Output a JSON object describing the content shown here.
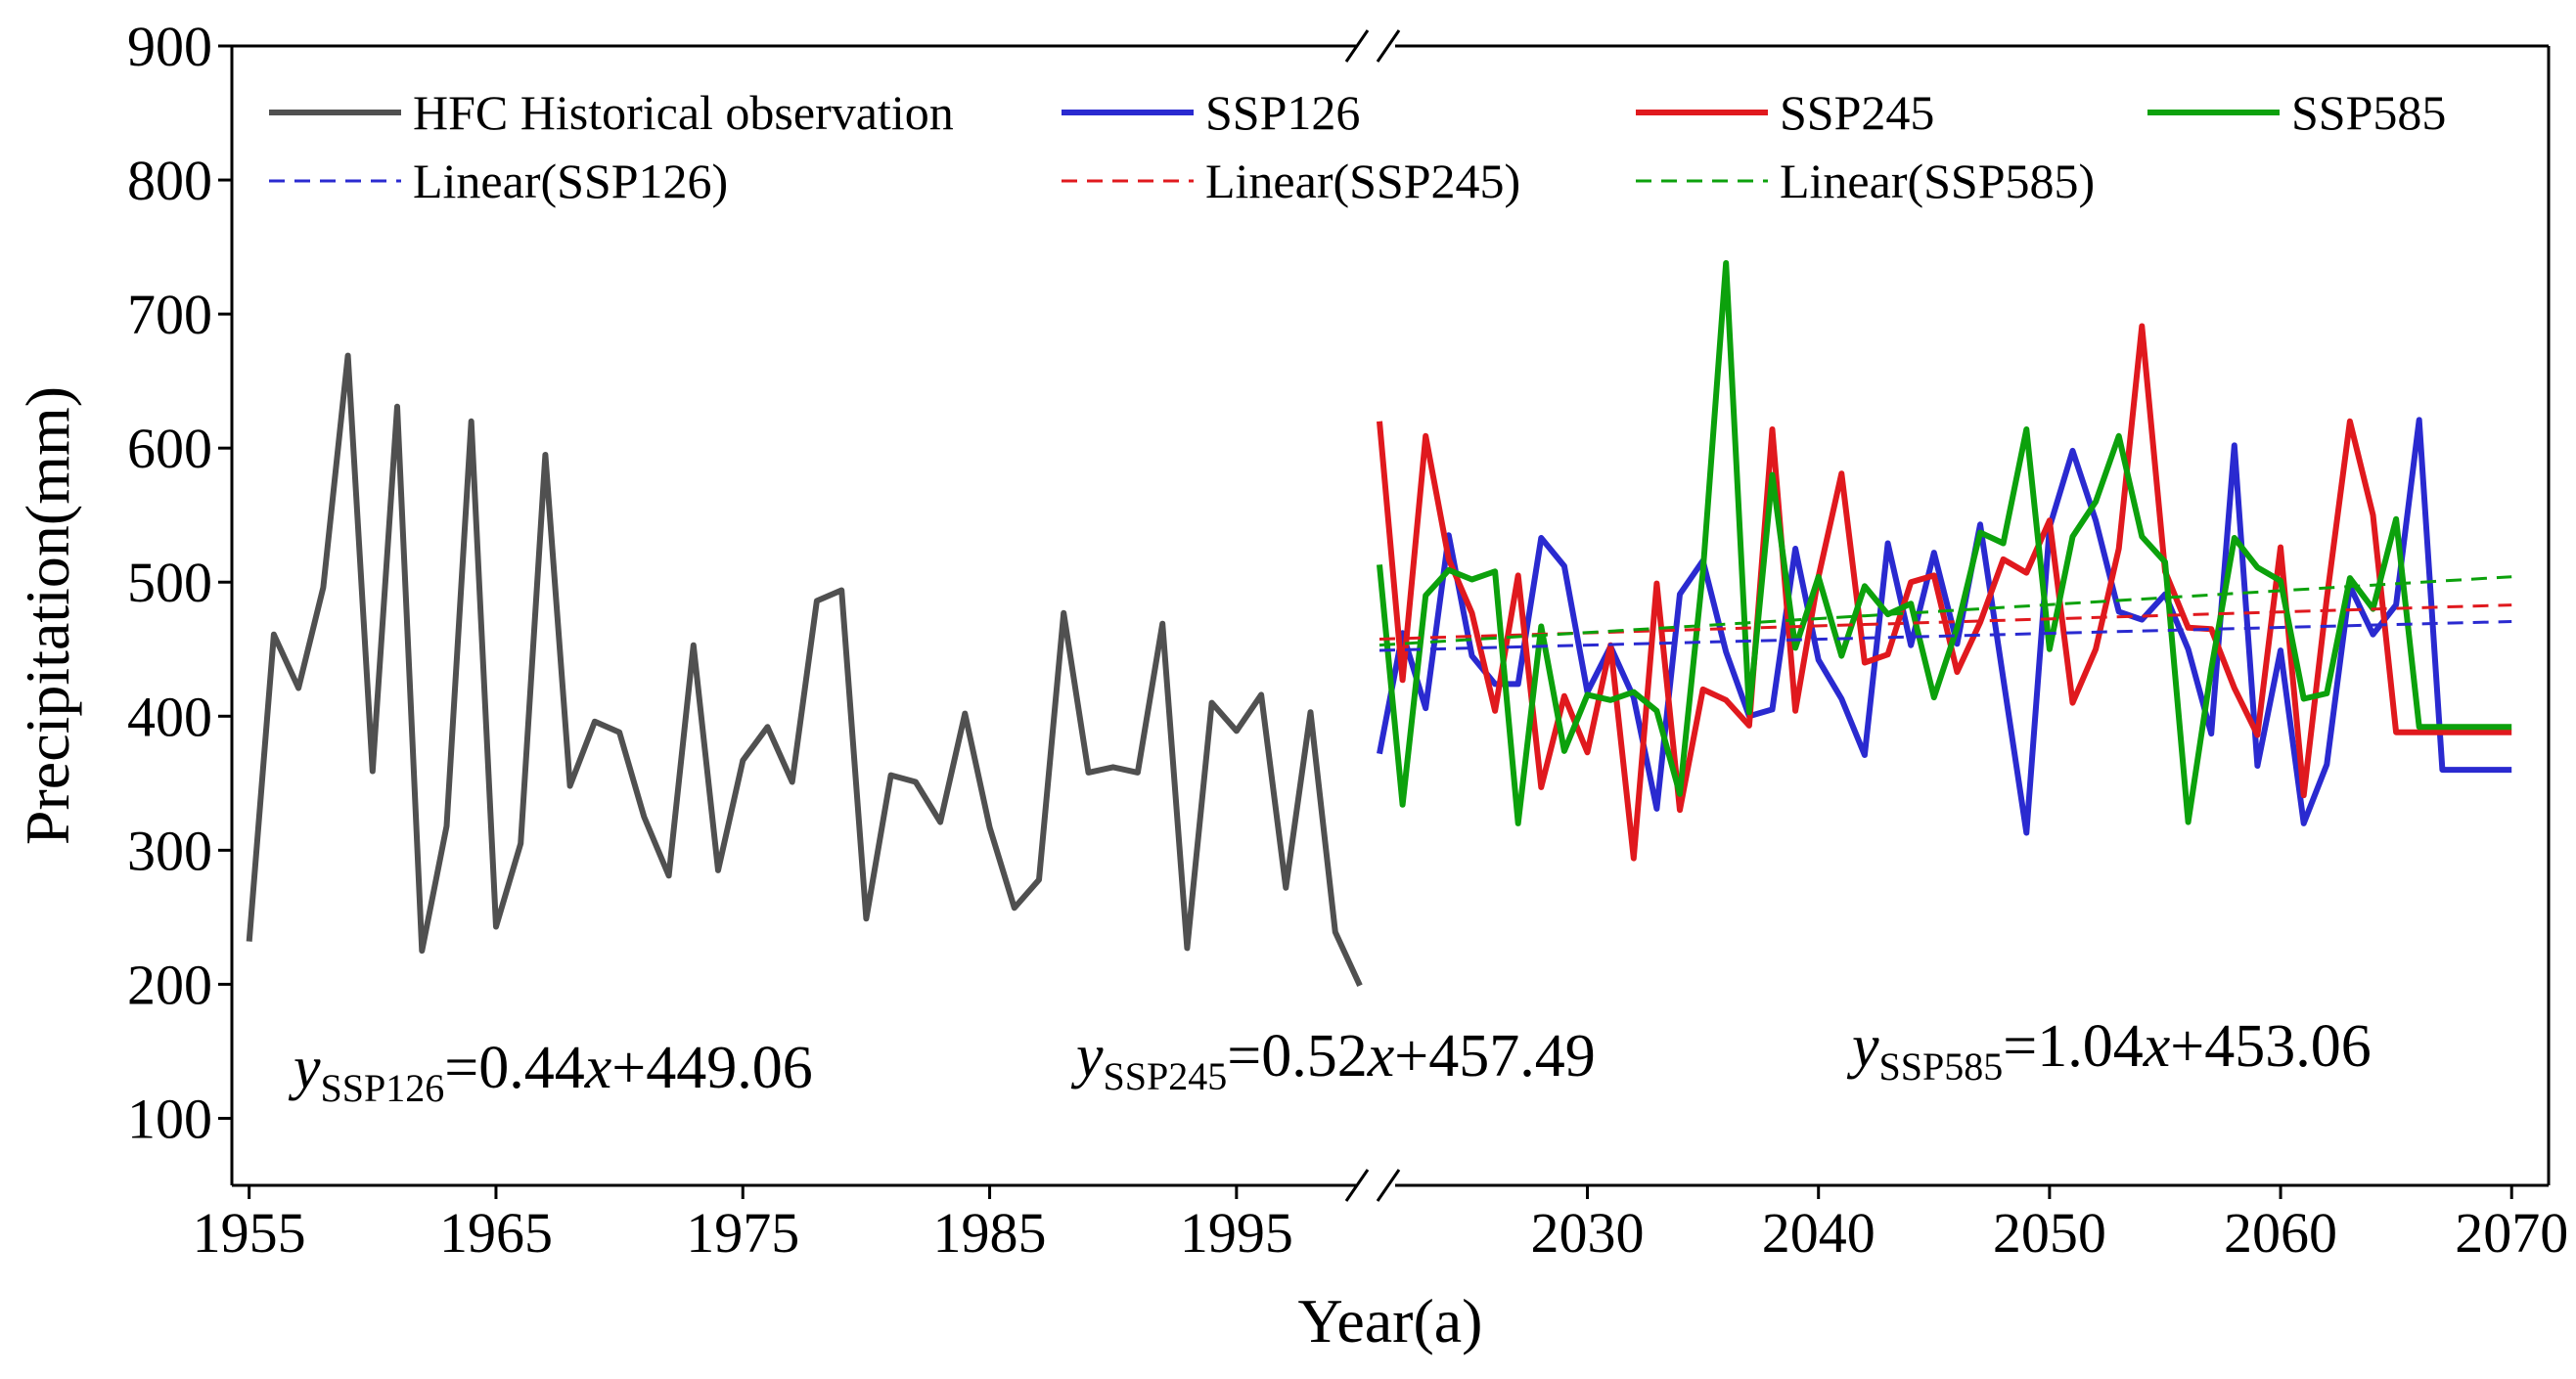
{
  "chart_data": {
    "type": "line",
    "xlabel": "Year(a)",
    "ylabel": "Precipitation(mm)",
    "ylim": [
      50,
      900
    ],
    "yticks": [
      100,
      200,
      300,
      400,
      500,
      600,
      700,
      800,
      900
    ],
    "historical": {
      "name": "HFC Historical observation",
      "color": "#505050",
      "xlim": [
        1954.3,
        2000
      ],
      "xticks": [
        1955,
        1965,
        1975,
        1985,
        1995
      ],
      "years": [
        1955,
        1956,
        1957,
        1958,
        1959,
        1960,
        1961,
        1962,
        1963,
        1964,
        1965,
        1966,
        1967,
        1968,
        1969,
        1970,
        1971,
        1972,
        1973,
        1974,
        1975,
        1976,
        1977,
        1978,
        1979,
        1980,
        1981,
        1982,
        1983,
        1984,
        1985,
        1986,
        1987,
        1988,
        1989,
        1990,
        1991,
        1992,
        1993,
        1994,
        1995,
        1996,
        1997,
        1998,
        1999,
        2000
      ],
      "values": [
        232,
        461,
        421,
        496,
        669,
        359,
        631,
        225,
        318,
        620,
        243,
        305,
        595,
        348,
        396,
        388,
        325,
        281,
        453,
        285,
        367,
        392,
        351,
        486,
        494,
        249,
        356,
        351,
        321,
        402,
        317,
        257,
        278,
        477,
        358,
        362,
        358,
        469,
        227,
        410,
        389,
        416,
        272,
        403,
        239,
        199
      ]
    },
    "future": {
      "xlim": [
        2021,
        2071.6
      ],
      "xticks": [
        2030,
        2040,
        2050,
        2060,
        2070
      ],
      "years": [
        2021,
        2022,
        2023,
        2024,
        2025,
        2026,
        2027,
        2028,
        2029,
        2030,
        2031,
        2032,
        2033,
        2034,
        2035,
        2036,
        2037,
        2038,
        2039,
        2040,
        2041,
        2042,
        2043,
        2044,
        2045,
        2046,
        2047,
        2048,
        2049,
        2050,
        2051,
        2052,
        2053,
        2054,
        2055,
        2056,
        2057,
        2058,
        2059,
        2060,
        2061,
        2062,
        2063,
        2064,
        2065,
        2066,
        2067,
        2068,
        2069,
        2070
      ],
      "series": [
        {
          "name": "SSP126",
          "color": "#2a2ad0",
          "values": [
            372,
            462,
            406,
            535,
            445,
            424,
            424,
            533,
            512,
            418,
            452,
            414,
            331,
            491,
            516,
            448,
            400,
            405,
            525,
            442,
            413,
            371,
            529,
            453,
            522,
            454,
            543,
            428,
            313,
            541,
            598,
            546,
            478,
            472,
            491,
            450,
            387,
            602,
            363,
            449,
            320,
            364,
            497,
            461,
            483,
            621,
            360,
            360,
            360,
            360
          ]
        },
        {
          "name": "SSP245",
          "color": "#e0191e",
          "values": [
            620,
            427,
            609,
            517,
            477,
            404,
            505,
            347,
            415,
            373,
            453,
            294,
            499,
            330,
            420,
            412,
            393,
            614,
            404,
            504,
            581,
            440,
            446,
            500,
            505,
            433,
            470,
            517,
            507,
            546,
            410,
            450,
            525,
            691,
            508,
            466,
            465,
            421,
            386,
            526,
            341,
            488,
            620,
            550,
            388,
            388,
            388,
            388,
            388,
            388
          ]
        },
        {
          "name": "SSP585",
          "color": "#0ca10c",
          "values": [
            513,
            334,
            490,
            509,
            502,
            508,
            320,
            467,
            374,
            416,
            412,
            418,
            404,
            342,
            508,
            738,
            403,
            580,
            451,
            504,
            445,
            497,
            476,
            484,
            414,
            466,
            537,
            529,
            614,
            450,
            534,
            560,
            609,
            534,
            515,
            321,
            435,
            533,
            511,
            501,
            413,
            417,
            503,
            480,
            547,
            392,
            392,
            392,
            392,
            392
          ]
        }
      ],
      "trends": [
        {
          "name": "Linear(SSP126)",
          "color": "#2a2ad0",
          "start": 449.06,
          "slope": 0.44
        },
        {
          "name": "Linear(SSP245)",
          "color": "#e0191e",
          "start": 457.49,
          "slope": 0.52
        },
        {
          "name": "Linear(SSP585)",
          "color": "#0ca10c",
          "start": 453.06,
          "slope": 1.04
        }
      ]
    },
    "legend": {
      "position": "top",
      "entries": [
        {
          "label": "HFC Historical observation",
          "color": "#505050",
          "style": "solid"
        },
        {
          "label": "SSP126",
          "color": "#2a2ad0",
          "style": "solid"
        },
        {
          "label": "SSP245",
          "color": "#e0191e",
          "style": "solid"
        },
        {
          "label": "SSP585",
          "color": "#0ca10c",
          "style": "solid"
        },
        {
          "label": "Linear(SSP126)",
          "color": "#2a2ad0",
          "style": "dashed"
        },
        {
          "label": "Linear(SSP245)",
          "color": "#e0191e",
          "style": "dashed"
        },
        {
          "label": "Linear(SSP585)",
          "color": "#0ca10c",
          "style": "dashed"
        }
      ]
    },
    "annotations": [
      {
        "prefix": "y",
        "sub": "SSP126",
        "rest": "=0.44",
        "var": "x",
        "tail": "+449.06"
      },
      {
        "prefix": "y",
        "sub": "SSP245",
        "rest": "=0.52",
        "var": "x",
        "tail": "+457.49"
      },
      {
        "prefix": "y",
        "sub": "SSP585",
        "rest": "=1.04",
        "var": "x",
        "tail": "+453.06"
      }
    ]
  }
}
